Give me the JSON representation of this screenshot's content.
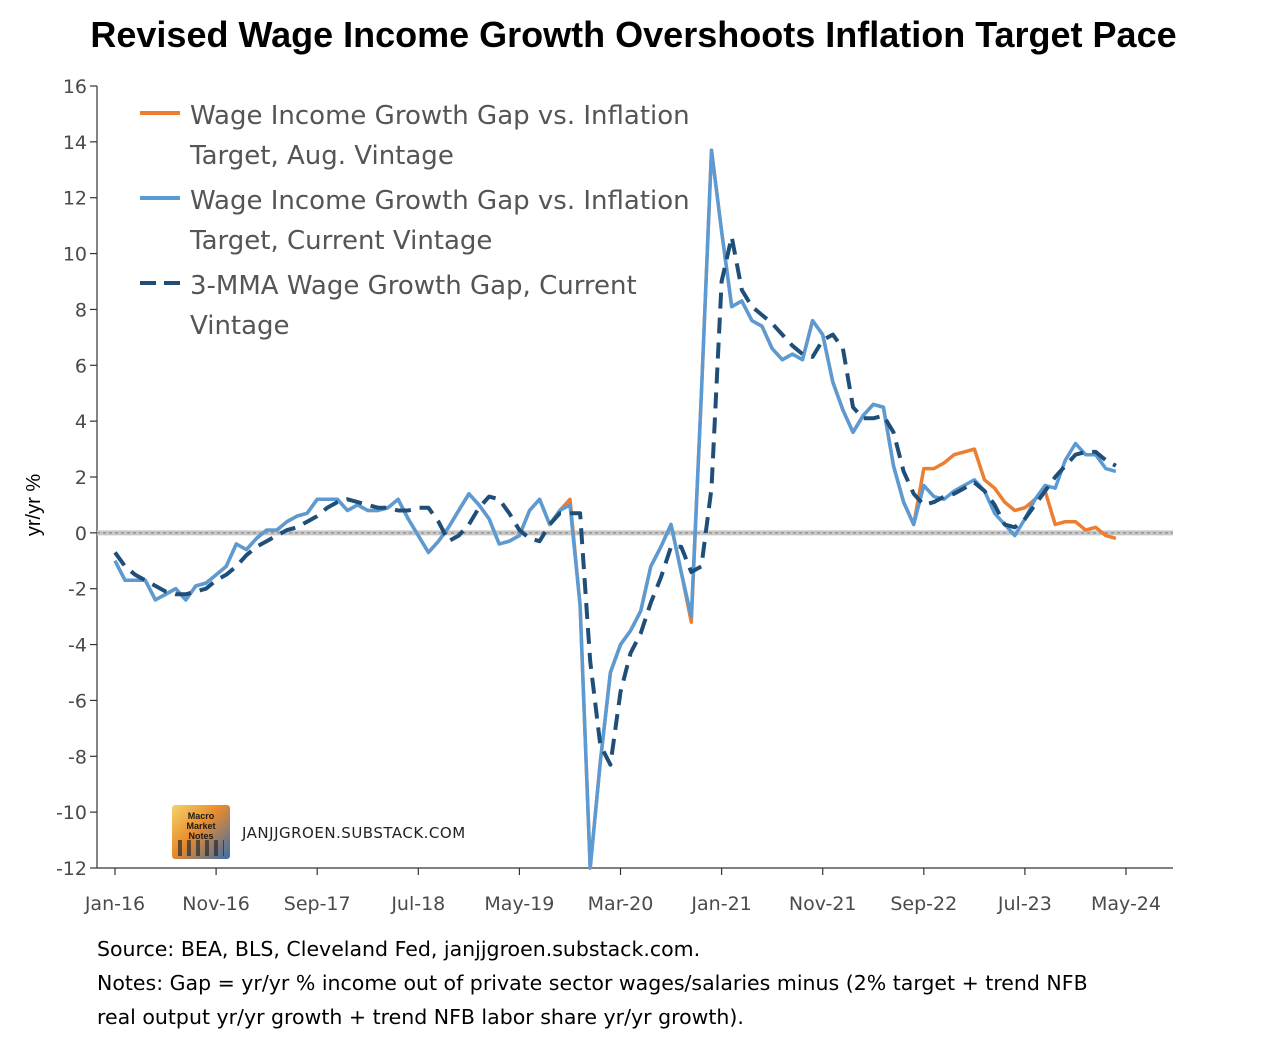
{
  "title": "Revised Wage Income Growth Overshoots Inflation Target Pace",
  "notes": {
    "source": "Source: BEA, BLS, Cleveland Fed, janjjgroen.substack.com.",
    "line1": "Notes: Gap = yr/yr % income out of private sector wages/salaries minus (2% target + trend NFB",
    "line2": "real output yr/yr growth + trend NFB labor share yr/yr growth)."
  },
  "watermark": {
    "logo_text": "Macro Market Notes",
    "site": "JANJJGROEN.SUBSTACK.COM"
  },
  "colors": {
    "aug_vintage": "#ed7d31",
    "current_vintage": "#5b9bd5",
    "mma": "#1f4e79",
    "zero_line": "#c0c0c0"
  },
  "chart_data": {
    "type": "line",
    "ylabel": "yr/yr %",
    "xlabel": "",
    "ylim": [
      -12,
      16
    ],
    "yticks": [
      16,
      14,
      12,
      10,
      8,
      6,
      4,
      2,
      0,
      -2,
      -4,
      -6,
      -8,
      -10,
      -12
    ],
    "xticks": [
      "Jan-16",
      "Nov-16",
      "Sep-17",
      "Jul-18",
      "May-19",
      "Mar-20",
      "Jan-21",
      "Nov-21",
      "Sep-22",
      "Jul-23",
      "May-24"
    ],
    "x_start": "Jan-16",
    "x_end": "Aug-24",
    "frequency": "monthly",
    "legend_position": "top-left",
    "grid": false,
    "series": [
      {
        "name": "Wage Income Growth Gap vs. Inflation Target, Aug. Vintage",
        "style": "solid",
        "color": "#ed7d31",
        "values": [
          -1.0,
          -1.7,
          -1.7,
          -1.7,
          -2.4,
          -2.2,
          -2.0,
          -2.4,
          -1.9,
          -1.8,
          -1.5,
          -1.2,
          -0.4,
          -0.6,
          -0.2,
          0.1,
          0.1,
          0.4,
          0.6,
          0.7,
          1.2,
          1.2,
          1.2,
          0.8,
          1.0,
          0.8,
          0.8,
          0.9,
          1.2,
          0.5,
          -0.1,
          -0.7,
          -0.3,
          0.2,
          0.8,
          1.4,
          1.0,
          0.5,
          -0.4,
          -0.3,
          -0.1,
          0.8,
          1.2,
          0.3,
          0.8,
          1.2,
          -2.6,
          -12.0,
          -8.2,
          -5.0,
          -4.0,
          -3.5,
          -2.8,
          -1.2,
          -0.5,
          0.3,
          -1.4,
          -3.2,
          5.0,
          13.7,
          10.8,
          8.1,
          8.3,
          7.6,
          7.4,
          6.6,
          6.2,
          6.4,
          6.2,
          7.6,
          7.1,
          5.4,
          4.4,
          3.6,
          4.2,
          4.6,
          4.5,
          2.4,
          1.1,
          0.3,
          2.3,
          2.3,
          2.5,
          2.8,
          2.9,
          3.0,
          1.9,
          1.6,
          1.1,
          0.8,
          0.9,
          1.2,
          1.5,
          0.3,
          0.4,
          0.4,
          0.1,
          0.2,
          -0.1,
          -0.2
        ],
        "start": "Jan-16"
      },
      {
        "name": "Wage Income Growth Gap vs. Inflation Target, Current Vintage",
        "style": "solid",
        "color": "#5b9bd5",
        "values": [
          -1.0,
          -1.7,
          -1.7,
          -1.7,
          -2.4,
          -2.2,
          -2.0,
          -2.4,
          -1.9,
          -1.8,
          -1.5,
          -1.2,
          -0.4,
          -0.6,
          -0.2,
          0.1,
          0.1,
          0.4,
          0.6,
          0.7,
          1.2,
          1.2,
          1.2,
          0.8,
          1.0,
          0.8,
          0.8,
          0.9,
          1.2,
          0.5,
          -0.1,
          -0.7,
          -0.3,
          0.2,
          0.8,
          1.4,
          1.0,
          0.5,
          -0.4,
          -0.3,
          -0.1,
          0.8,
          1.2,
          0.3,
          0.8,
          1.0,
          -2.6,
          -12.0,
          -8.2,
          -5.0,
          -4.0,
          -3.5,
          -2.8,
          -1.2,
          -0.5,
          0.3,
          -1.4,
          -3.0,
          5.0,
          13.7,
          10.8,
          8.1,
          8.3,
          7.6,
          7.4,
          6.6,
          6.2,
          6.4,
          6.2,
          7.6,
          7.1,
          5.4,
          4.4,
          3.6,
          4.2,
          4.6,
          4.5,
          2.4,
          1.1,
          0.3,
          1.7,
          1.3,
          1.2,
          1.5,
          1.7,
          1.9,
          1.5,
          0.7,
          0.3,
          -0.1,
          0.5,
          1.2,
          1.7,
          1.6,
          2.6,
          3.2,
          2.8,
          2.8,
          2.3,
          2.2
        ],
        "start": "Jan-16"
      },
      {
        "name": "3-MMA Wage Growth Gap, Current Vintage",
        "style": "dashed",
        "color": "#1f4e79",
        "values": [
          -0.7,
          -1.2,
          -1.5,
          -1.7,
          -1.9,
          -2.1,
          -2.2,
          -2.2,
          -2.1,
          -2.0,
          -1.7,
          -1.5,
          -1.2,
          -0.8,
          -0.5,
          -0.3,
          -0.1,
          0.1,
          0.2,
          0.4,
          0.6,
          0.9,
          1.1,
          1.2,
          1.1,
          1.0,
          0.9,
          0.9,
          0.8,
          0.8,
          0.9,
          0.9,
          0.4,
          -0.3,
          -0.1,
          0.3,
          0.9,
          1.3,
          1.2,
          0.7,
          0.1,
          -0.2,
          -0.3,
          0.3,
          0.7,
          0.7,
          0.7,
          -4.6,
          -7.6,
          -8.3,
          -5.7,
          -4.3,
          -3.6,
          -2.5,
          -1.6,
          -0.5,
          -0.5,
          -1.4,
          -1.2,
          1.6,
          9.0,
          10.6,
          8.7,
          8.1,
          7.8,
          7.5,
          7.1,
          6.7,
          6.4,
          6.3,
          6.9,
          7.1,
          6.6,
          4.5,
          4.1,
          4.1,
          4.2,
          3.6,
          2.2,
          1.4,
          1.0,
          1.1,
          1.3,
          1.4,
          1.6,
          1.8,
          1.5,
          1.0,
          0.3,
          0.2,
          0.5,
          1.0,
          1.5,
          2.0,
          2.4,
          2.8,
          2.9,
          2.9,
          2.6,
          2.4
        ],
        "start": "Jan-16",
        "first_point": "Jan-16"
      }
    ],
    "reference_lines": [
      {
        "y": 0,
        "style": "dotted",
        "color": "#c0c0c0"
      }
    ]
  }
}
